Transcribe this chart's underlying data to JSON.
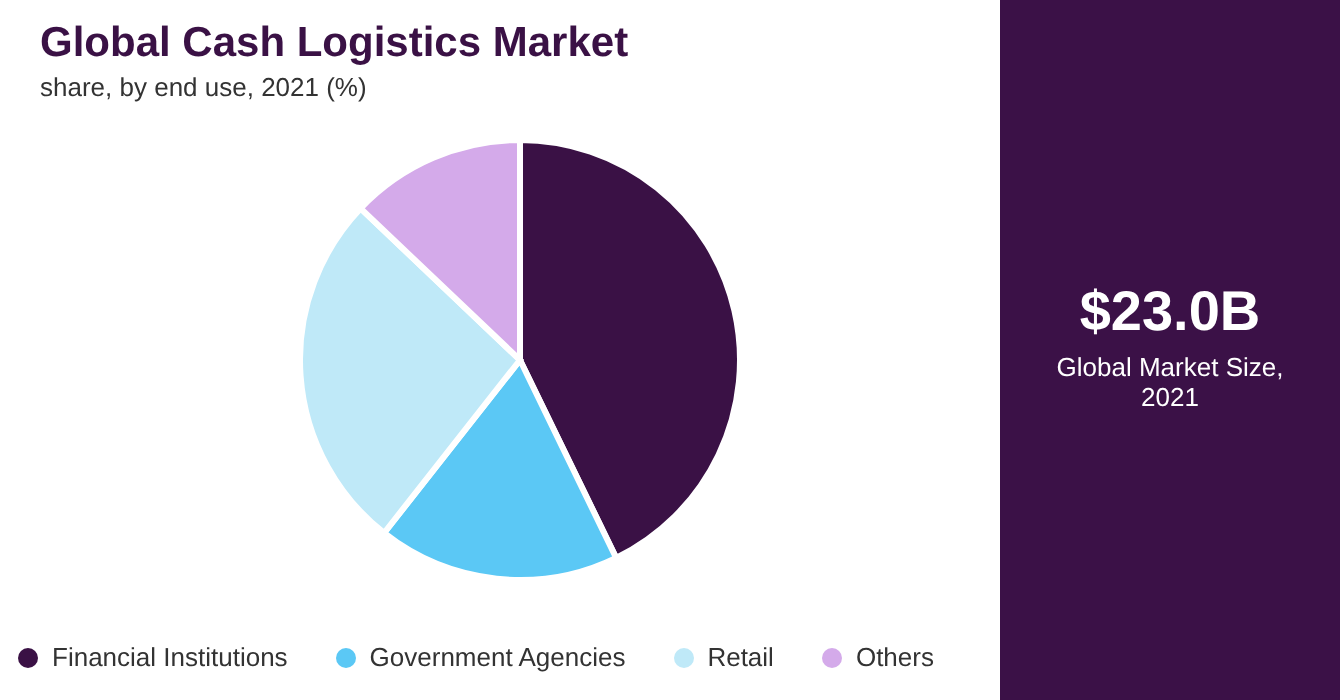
{
  "chart_data": {
    "type": "pie",
    "title": "Global Cash Logistics Market",
    "subtitle": "share, by end use, 2021 (%)",
    "categories": [
      "Financial Institutions",
      "Government Agencies",
      "Retail",
      "Others"
    ],
    "values": [
      42.8,
      17.8,
      26.5,
      12.9
    ],
    "colors": [
      "#3a1145",
      "#5bc8f5",
      "#bfe9f8",
      "#d4aaea"
    ],
    "legend": "bottom",
    "annotations": [
      "$23.0B",
      "Global Market Size, 2021"
    ]
  }
}
